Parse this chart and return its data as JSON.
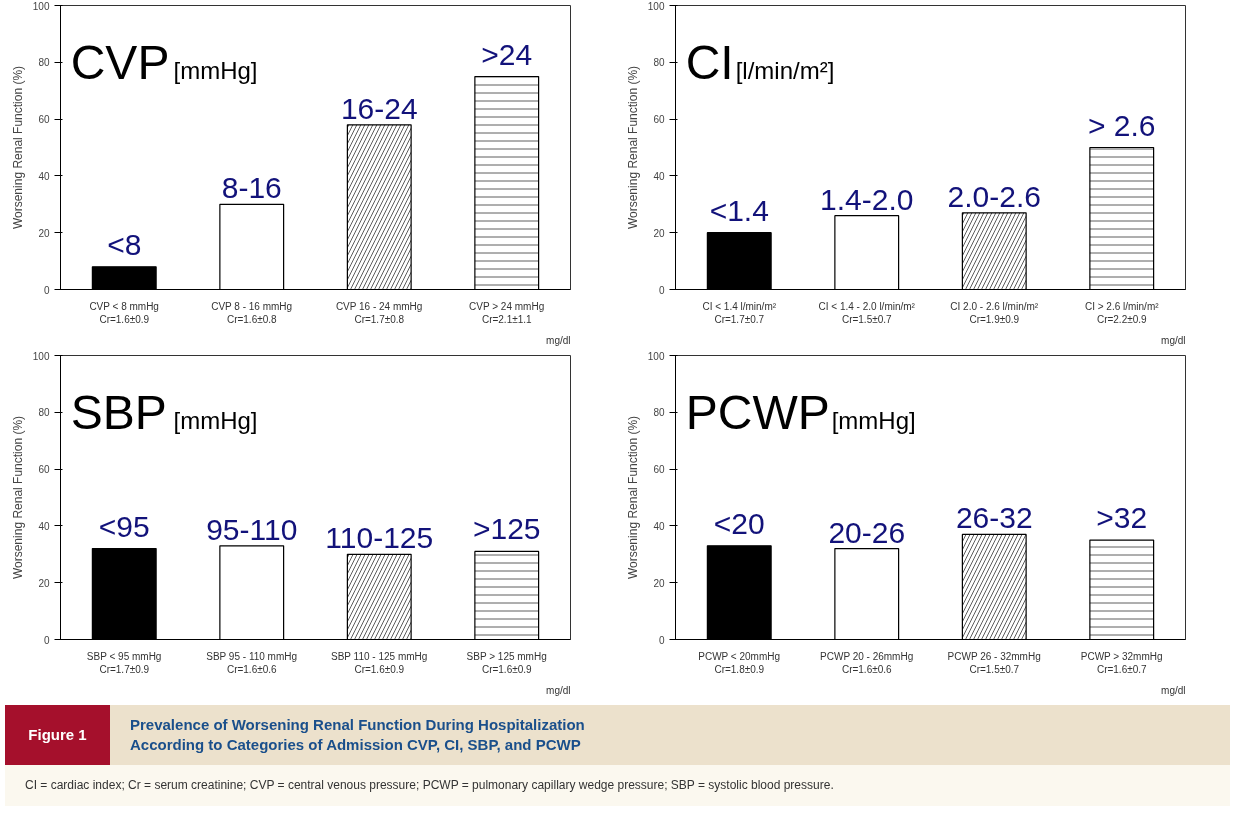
{
  "chart_data": [
    {
      "type": "bar",
      "title": "CVP$_{[mmHg]}$",
      "ylabel": "Worsening Renal Function (%)",
      "categories": [
        "CVP < 8 mmHg\nCr=1.6±0.9",
        "CVP 8 - 16 mmHg\nCr=1.6±0.8",
        "CVP 16 - 24 mmHg\nCr=1.7±0.8",
        "CVP > 24 mmHg\nCr=2.1±1.1"
      ],
      "values": [
        8,
        30,
        58,
        75
      ],
      "colors": [
        "#000000",
        "#ffffff",
        "#ffffff",
        "#ffffff"
      ],
      "value_labels": [
        "<8",
        "8-16",
        "16-24",
        ">24"
      ],
      "ylim": [
        0,
        100
      ],
      "yticks": [
        0,
        20,
        40,
        60,
        80,
        100
      ],
      "grid": false,
      "annotations": [
        "mg/dl"
      ]
    },
    {
      "type": "bar",
      "title": "CI$_{[l/min/m²]}$",
      "ylabel": "Worsening Renal Function (%)",
      "categories": [
        "CI < 1.4 l/min/m²\nCr=1.7±0.7",
        "CI < 1.4 - 2.0 l/min/m²\nCr=1.5±0.7",
        "CI 2.0 - 2.6 l/min/m²\nCr=1.9±0.9",
        "CI > 2.6 l/min/m²\nCr=2.2±0.9"
      ],
      "values": [
        20,
        26,
        27,
        50
      ],
      "colors": [
        "#000000",
        "#ffffff",
        "#ffffff",
        "#ffffff"
      ],
      "value_labels": [
        "<1.4",
        "1.4-2.0",
        "2.0-2.6",
        "> 2.6"
      ],
      "ylim": [
        0,
        100
      ],
      "yticks": [
        0,
        20,
        40,
        60,
        80,
        100
      ],
      "grid": false,
      "annotations": [
        "mg/dl"
      ]
    },
    {
      "type": "bar",
      "title": "SBP$_{[mmHg]}$",
      "ylabel": "Worsening Renal Function (%)",
      "categories": [
        "SBP < 95 mmHg\nCr=1.7±0.9",
        "SBP 95 - 110 mmHg\nCr=1.6±0.6",
        "SBP 110 - 125 mmHg\nCr=1.6±0.9",
        "SBP > 125 mmHg\nCr=1.6±0.9"
      ],
      "values": [
        32,
        33,
        30,
        31
      ],
      "colors": [
        "#000000",
        "#ffffff",
        "#ffffff",
        "#ffffff"
      ],
      "value_labels": [
        "<95",
        "95-110",
        "110-125",
        ">125"
      ],
      "ylim": [
        0,
        100
      ],
      "yticks": [
        0,
        20,
        40,
        60,
        80,
        100
      ],
      "grid": false,
      "annotations": [
        "mg/dl"
      ]
    },
    {
      "type": "bar",
      "title": "PCWP$_{[mmHg]}$",
      "ylabel": "Worsening Renal Function (%)",
      "categories": [
        "PCWP < 20mmHg\nCr=1.8±0.9",
        "PCWP 20 - 26mmHg\nCr=1.6±0.6",
        "PCWP 26 - 32mmHg\nCr=1.5±0.7",
        "PCWP > 32mmHg\nCr=1.6±0.7"
      ],
      "values": [
        33,
        32,
        37,
        35
      ],
      "colors": [
        "#000000",
        "#ffffff",
        "#ffffff",
        "#ffffff"
      ],
      "value_labels": [
        "<20",
        "20-26",
        "26-32",
        ">32"
      ],
      "ylim": [
        0,
        100
      ],
      "yticks": [
        0,
        20,
        40,
        60,
        80,
        100
      ],
      "grid": false,
      "annotations": [
        "mg/dl"
      ]
    },
    {
      "type": "other",
      "title": "Prevalence of Worsening Renal Function During Hospitalization According to Categories of Admission CVP, CI, SBP, and PCWP",
      "annotations": [
        "Figure 1",
        "CI = cardiac index; Cr = serum creatinine; CVP = central venous pressure; PCWP = pulmonary capillary wedge pressure; SBP = systolic blood pressure."
      ]
    }
  ]
}
